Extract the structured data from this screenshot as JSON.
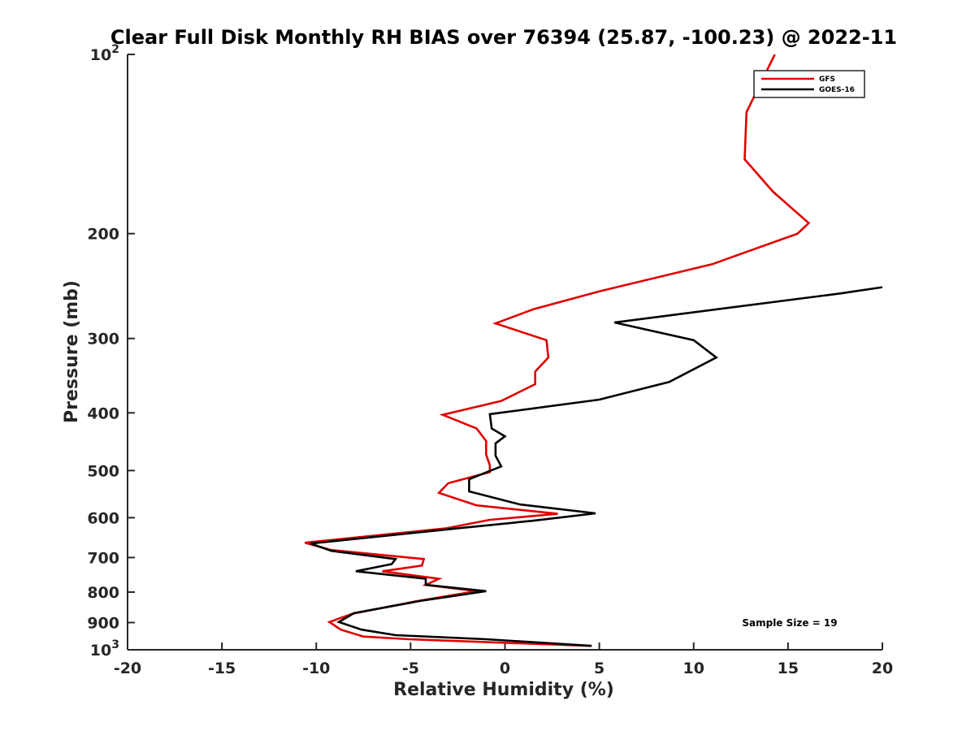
{
  "chart_data": {
    "type": "line",
    "title": "Clear Full Disk Monthly RH BIAS over 76394 (25.87, -100.23) @ 2022-11",
    "xlabel": "Relative Humidity (%)",
    "ylabel": "Pressure (mb)",
    "xlim": [
      -20,
      20
    ],
    "ylim": [
      100,
      1000
    ],
    "yscale": "log",
    "y_reversed": true,
    "grid": false,
    "x_ticks": [
      -20,
      -15,
      -10,
      -5,
      0,
      5,
      10,
      15,
      20
    ],
    "x_tick_labels": [
      "-20",
      "-15",
      "-10",
      "-5",
      "0",
      "5",
      "10",
      "15",
      "20"
    ],
    "y_ticks": [
      100,
      200,
      300,
      400,
      500,
      600,
      700,
      800,
      900,
      1000
    ],
    "y_tick_labels": [
      {
        "base": "10",
        "exp": "2"
      },
      {
        "base": "200",
        "exp": ""
      },
      {
        "base": "300",
        "exp": ""
      },
      {
        "base": "400",
        "exp": ""
      },
      {
        "base": "500",
        "exp": ""
      },
      {
        "base": "600",
        "exp": ""
      },
      {
        "base": "700",
        "exp": ""
      },
      {
        "base": "800",
        "exp": ""
      },
      {
        "base": "900",
        "exp": ""
      },
      {
        "base": "10",
        "exp": "3"
      }
    ],
    "legend_position": "top-right",
    "annotation": "Sample Size = 19",
    "series": [
      {
        "name": "GFS",
        "color": "#e00000",
        "points": [
          [
            14.3,
            100
          ],
          [
            12.8,
            125
          ],
          [
            12.7,
            150
          ],
          [
            14.2,
            170
          ],
          [
            16.1,
            192
          ],
          [
            15.5,
            200
          ],
          [
            11.0,
            225
          ],
          [
            5.0,
            250
          ],
          [
            1.5,
            268
          ],
          [
            -0.5,
            283
          ],
          [
            2.2,
            302
          ],
          [
            2.3,
            323
          ],
          [
            1.6,
            341
          ],
          [
            1.6,
            358
          ],
          [
            -0.2,
            382
          ],
          [
            -3.3,
            403
          ],
          [
            -1.5,
            425
          ],
          [
            -1.0,
            446
          ],
          [
            -1.0,
            470
          ],
          [
            -0.8,
            490
          ],
          [
            -0.8,
            503
          ],
          [
            -3.0,
            525
          ],
          [
            -3.5,
            545
          ],
          [
            -1.5,
            572
          ],
          [
            2.8,
            591
          ],
          [
            -0.8,
            605
          ],
          [
            -3.1,
            625
          ],
          [
            -10.6,
            661
          ],
          [
            -9.2,
            680
          ],
          [
            -4.3,
            704
          ],
          [
            -4.4,
            722
          ],
          [
            -6.5,
            738
          ],
          [
            -3.5,
            760
          ],
          [
            -4.2,
            778
          ],
          [
            -1.5,
            797
          ],
          [
            -4.8,
            830
          ],
          [
            -8.1,
            870
          ],
          [
            -9.3,
            898
          ],
          [
            -8.7,
            925
          ],
          [
            -7.5,
            950
          ],
          [
            -5.1,
            960
          ],
          [
            4.5,
            985
          ]
        ]
      },
      {
        "name": "GOES-16",
        "color": "#000000",
        "points": [
          [
            20.0,
            246
          ],
          [
            17.8,
            252
          ],
          [
            5.8,
            282
          ],
          [
            10.0,
            302
          ],
          [
            11.2,
            323
          ],
          [
            8.7,
            355
          ],
          [
            5.0,
            380
          ],
          [
            -0.8,
            402
          ],
          [
            -0.7,
            425
          ],
          [
            0.0,
            438
          ],
          [
            -0.5,
            450
          ],
          [
            -0.5,
            472
          ],
          [
            -0.2,
            492
          ],
          [
            -1.9,
            517
          ],
          [
            -1.9,
            542
          ],
          [
            0.8,
            570
          ],
          [
            4.8,
            590
          ],
          [
            1.5,
            607
          ],
          [
            -2.5,
            625
          ],
          [
            -10.3,
            663
          ],
          [
            -9.2,
            682
          ],
          [
            -5.8,
            704
          ],
          [
            -6.0,
            718
          ],
          [
            -7.9,
            738
          ],
          [
            -4.2,
            760
          ],
          [
            -4.2,
            778
          ],
          [
            -1.0,
            797
          ],
          [
            -4.5,
            828
          ],
          [
            -8.0,
            868
          ],
          [
            -8.8,
            898
          ],
          [
            -7.6,
            925
          ],
          [
            -5.8,
            945
          ],
          [
            -1.0,
            960
          ],
          [
            4.6,
            985
          ]
        ]
      }
    ]
  }
}
